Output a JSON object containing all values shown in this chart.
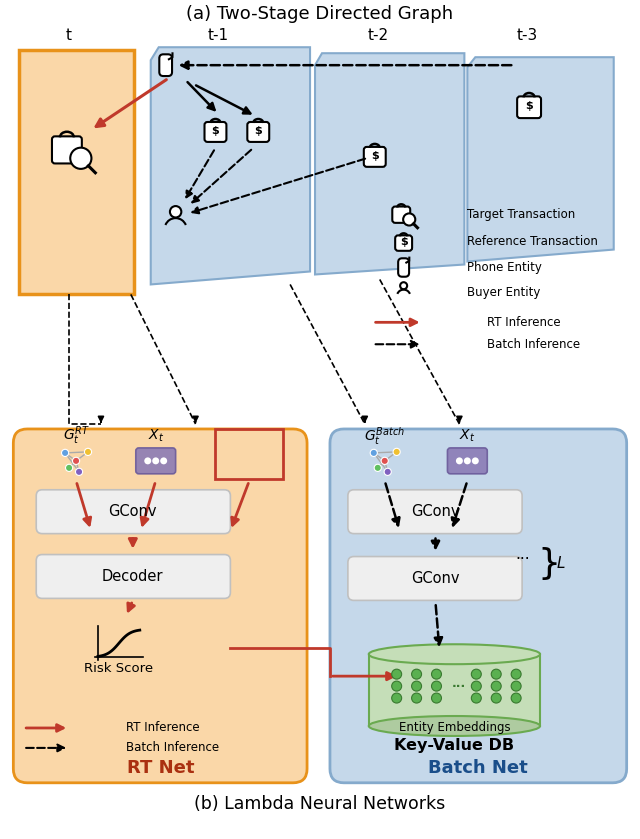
{
  "title_a": "(a) Two-Stage Directed Graph",
  "title_b": "(b) Lambda Neural Networks",
  "bg_color": "#ffffff",
  "orange_bg": "#FAD7A8",
  "orange_border": "#E8921A",
  "blue_bg": "#C5D8EA",
  "blue_border": "#85AACC",
  "green_bg": "#C5DEB8",
  "green_border": "#6AAA50",
  "box_bg": "#EFEFEF",
  "box_border": "#C0C0C0",
  "red_color": "#C0392B",
  "purple_color": "#8B7BB5",
  "rt_label": "RT Net",
  "batch_label": "Batch Net",
  "gconv_label": "GConv",
  "decoder_label": "Decoder",
  "risk_label": "Risk Score",
  "entity_emb_label": "Entity Embeddings",
  "kv_db_label": "Key-Value DB",
  "rt_inf_label": "RT Inference",
  "batch_inf_label": "Batch Inference",
  "legend_items": [
    "Target Transaction",
    "Reference Transaction",
    "Phone Entity",
    "Buyer Entity"
  ]
}
